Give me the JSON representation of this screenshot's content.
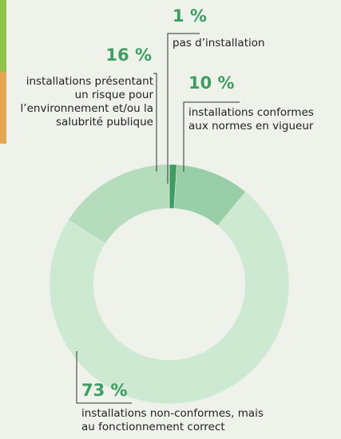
{
  "chart_data": {
    "type": "donut",
    "categories": [
      "pas d’installation",
      "installations conformes aux normes en vigueur",
      "installations non-conformes, mais au fonctionnement correct",
      "installations présentant un risque pour l’environnement et/ou la salubrité publique"
    ],
    "values": [
      1,
      10,
      73,
      16
    ],
    "value_labels": [
      "1 %",
      "10 %",
      "73 %",
      "16 %"
    ],
    "colors": [
      "#3f9c62",
      "#98cfa8",
      "#cde9d1",
      "#b5dcbd"
    ]
  }
}
